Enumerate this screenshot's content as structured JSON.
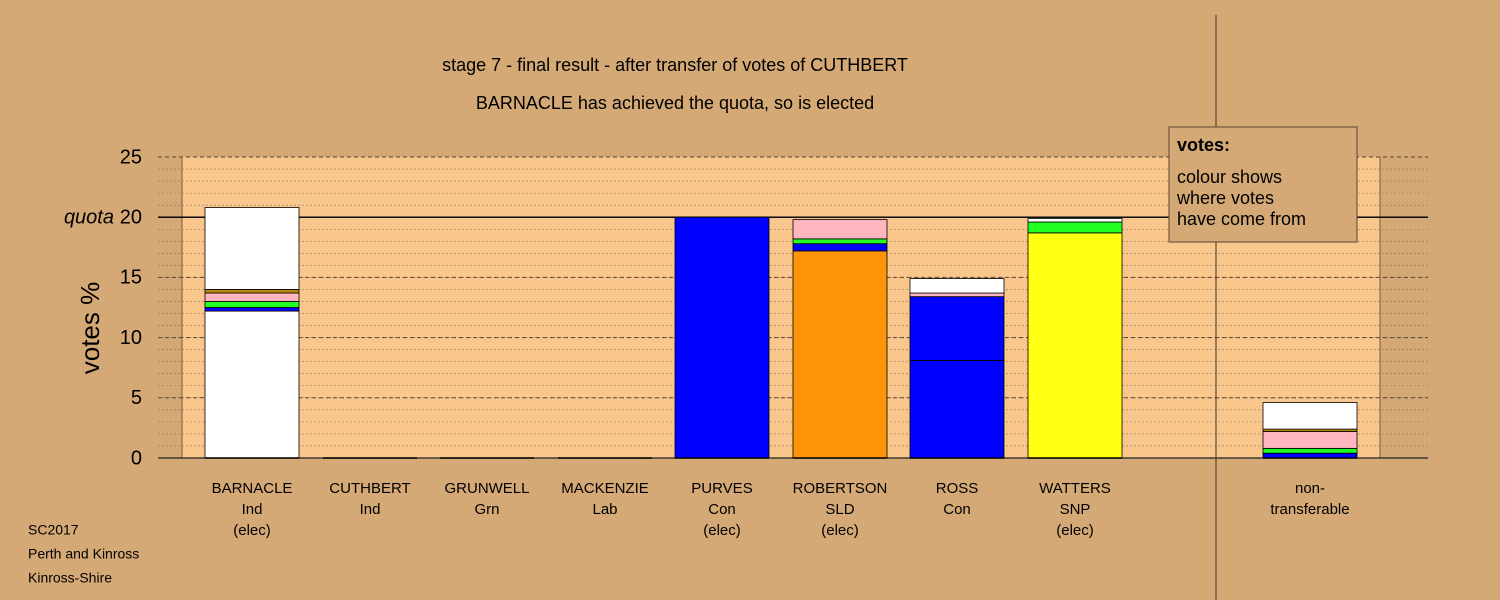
{
  "chart_data": {
    "type": "stacked-bar",
    "title": "stage 7 - final result - after transfer of votes of CUTHBERT",
    "subtitle": "BARNACLE has achieved the quota, so is elected",
    "y_label": "votes %",
    "quota_label": "quota",
    "quota": 20,
    "categories": [
      [
        "BARNACLE",
        "Ind",
        "(elec)"
      ],
      [
        "CUTHBERT",
        "Ind"
      ],
      [
        "GRUNWELL",
        "Grn"
      ],
      [
        "MACKENZIE",
        "Lab"
      ],
      [
        "PURVES",
        "Con",
        "(elec)"
      ],
      [
        "ROBERTSON",
        "SLD",
        "(elec)"
      ],
      [
        "ROSS",
        "Con"
      ],
      [
        "WATTERS",
        "SNP",
        "(elec)"
      ],
      [
        "non-",
        "transferable"
      ]
    ],
    "series": [
      {
        "color": "#ffffff",
        "values": [
          12.2,
          0,
          0,
          0,
          0,
          0,
          0,
          0,
          0
        ]
      },
      {
        "color": "#ff9408",
        "values": [
          0,
          0,
          0,
          0,
          0,
          17.2,
          0,
          0,
          0
        ]
      },
      {
        "color": "#ffff14",
        "values": [
          0,
          0,
          0,
          0,
          0,
          0,
          0,
          18.7,
          0
        ]
      },
      {
        "color": "#0000ff",
        "values": [
          0,
          0,
          0,
          0,
          20.0,
          0,
          8.1,
          0,
          0
        ]
      },
      {
        "color": "#0000ff",
        "values": [
          0.3,
          0,
          0,
          0,
          0,
          0.6,
          5.3,
          0,
          0.4
        ]
      },
      {
        "color": "#22ff22",
        "values": [
          0.5,
          0,
          0,
          0,
          0,
          0.4,
          0,
          0.9,
          0.4
        ]
      },
      {
        "color": "#ffb6c1",
        "values": [
          0.7,
          0,
          0,
          0,
          0,
          1.6,
          0.3,
          0,
          1.4
        ]
      },
      {
        "color": "#b8860b",
        "values": [
          0.3,
          0,
          0,
          0,
          0,
          0,
          0,
          0,
          0.2
        ]
      },
      {
        "color": "#ffffff",
        "values": [
          6.8,
          0,
          0,
          0,
          0,
          0,
          1.2,
          0.3,
          2.2
        ]
      }
    ],
    "ylim": [
      0,
      25
    ],
    "yticks": [
      0,
      5,
      10,
      15,
      20,
      25
    ],
    "minor_step": 1,
    "legend": {
      "title": "votes:",
      "lines": [
        "colour shows",
        "where votes",
        "have come from"
      ]
    },
    "footer": [
      "SC2017",
      "Perth and Kinross",
      "Kinross-Shire"
    ]
  }
}
